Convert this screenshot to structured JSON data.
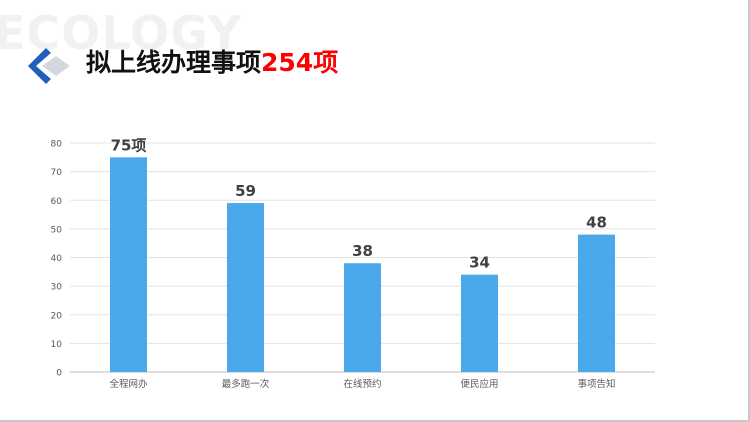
{
  "watermark": "ECOLOGY",
  "logo_icon": "diamond-logo-icon",
  "title": {
    "prefix": "拟上线办理事项",
    "highlight": "254项"
  },
  "colors": {
    "bar": "#4aa9ea",
    "highlight": "#ff0000",
    "logo_blue": "#1f5fbf",
    "logo_light": "#d4d8de"
  },
  "chart_data": {
    "type": "bar",
    "categories": [
      "全程网办",
      "最多跑一次",
      "在线预约",
      "便民应用",
      "事项告知"
    ],
    "values": [
      75,
      59,
      38,
      34,
      48
    ],
    "data_labels": [
      "75项",
      "59",
      "38",
      "34",
      "48"
    ],
    "yticks": [
      0,
      10,
      20,
      30,
      40,
      50,
      60,
      70,
      80
    ],
    "ylim": [
      0,
      80
    ],
    "grid": true,
    "legend": "none"
  }
}
